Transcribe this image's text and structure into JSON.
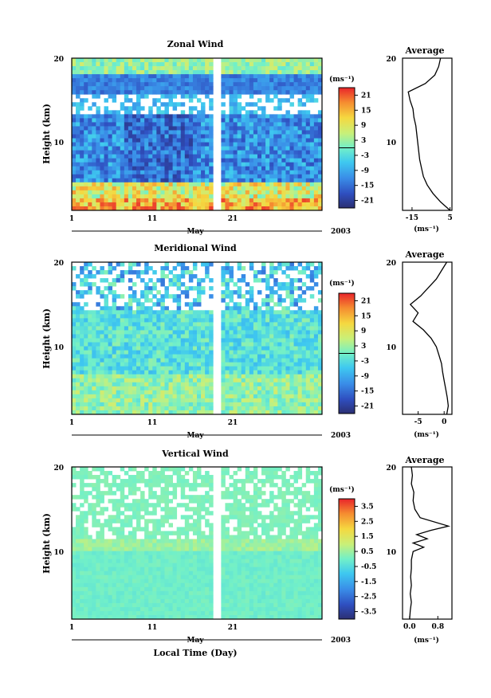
{
  "chart_data": [
    {
      "type": "heatmap",
      "title": "Zonal Wind",
      "ylabel": "Height (km)",
      "yticks": [
        10,
        20
      ],
      "ylim": [
        2,
        20
      ],
      "xticks": [
        "1",
        "11",
        "21"
      ],
      "xlim": [
        1,
        32
      ],
      "month_label": "May",
      "year_label": "2003",
      "colorbar": {
        "unit": "(ms⁻¹)",
        "ticks": [
          "21",
          "15",
          "9",
          "3",
          "-3",
          "-9",
          "-15",
          "-21"
        ],
        "range": [
          -24,
          24
        ]
      },
      "data_gap_days": [
        18,
        19
      ],
      "profile": {
        "title": "Average",
        "xticks": [
          "-15",
          "5"
        ],
        "xlim": [
          -20,
          6
        ],
        "xlabel": "(ms⁻¹)",
        "heights": [
          2,
          3,
          4,
          5,
          6,
          7,
          8,
          9,
          10,
          11,
          12,
          13,
          14,
          15,
          16,
          17,
          18,
          19,
          20
        ],
        "values": [
          5,
          0,
          -4,
          -7,
          -9,
          -10,
          -11,
          -11.5,
          -12,
          -12.5,
          -13,
          -14,
          -14.5,
          -16,
          -17,
          -8,
          -3,
          -1,
          0
        ]
      }
    },
    {
      "type": "heatmap",
      "title": "Meridional Wind",
      "ylabel": "Height (km)",
      "yticks": [
        10,
        20
      ],
      "ylim": [
        2,
        20
      ],
      "xticks": [
        "1",
        "11",
        "21"
      ],
      "xlim": [
        1,
        32
      ],
      "month_label": "May",
      "year_label": "2003",
      "colorbar": {
        "unit": "(ms⁻¹)",
        "ticks": [
          "21",
          "15",
          "9",
          "3",
          "-3",
          "-9",
          "-15",
          "-21"
        ],
        "range": [
          -24,
          24
        ]
      },
      "data_gap_days": [
        18,
        19
      ],
      "profile": {
        "title": "Average",
        "xticks": [
          "-5",
          "0"
        ],
        "xlim": [
          -8,
          1.5
        ],
        "xlabel": "(ms⁻¹)",
        "heights": [
          2,
          3,
          4,
          5,
          6,
          7,
          8,
          9,
          10,
          11,
          12,
          13,
          14,
          15,
          16,
          17,
          18,
          19,
          20
        ],
        "values": [
          0.5,
          0.8,
          0.6,
          0.3,
          0,
          -0.3,
          -0.5,
          -1,
          -1.5,
          -2.5,
          -4,
          -6,
          -5,
          -6.5,
          -4.5,
          -3,
          -1.5,
          -0.5,
          0.5
        ]
      }
    },
    {
      "type": "heatmap",
      "title": "Vertical Wind",
      "ylabel": "Height (km)",
      "yticks": [
        10,
        20
      ],
      "ylim": [
        2,
        20
      ],
      "xticks": [
        "1",
        "11",
        "21"
      ],
      "xlim": [
        1,
        32
      ],
      "month_label": "May",
      "year_label": "2003",
      "xlabel": "Local Time (Day)",
      "colorbar": {
        "unit": "(ms⁻¹)",
        "ticks": [
          "3.5",
          "2.5",
          "1.5",
          "0.5",
          "-0.5",
          "-1.5",
          "-2.5",
          "-3.5"
        ],
        "range": [
          -4,
          4
        ]
      },
      "data_gap_days": [
        18,
        19
      ],
      "profile": {
        "title": "Average",
        "xticks": [
          "0.0",
          "0.8"
        ],
        "xlim": [
          -0.2,
          1.2
        ],
        "xlabel": "(ms⁻¹)",
        "heights": [
          2,
          3,
          4,
          5,
          6,
          7,
          8,
          9,
          10,
          10.5,
          11,
          11.5,
          12,
          12.5,
          13,
          14,
          15,
          16,
          17,
          18,
          19,
          20
        ],
        "values": [
          0,
          0.02,
          0.05,
          0.02,
          0.05,
          0.03,
          0.05,
          0.05,
          0.1,
          0.4,
          0.1,
          0.5,
          0.2,
          0.6,
          1.1,
          0.3,
          0.15,
          0.1,
          0.12,
          0.05,
          0.08,
          0.05
        ]
      }
    }
  ]
}
